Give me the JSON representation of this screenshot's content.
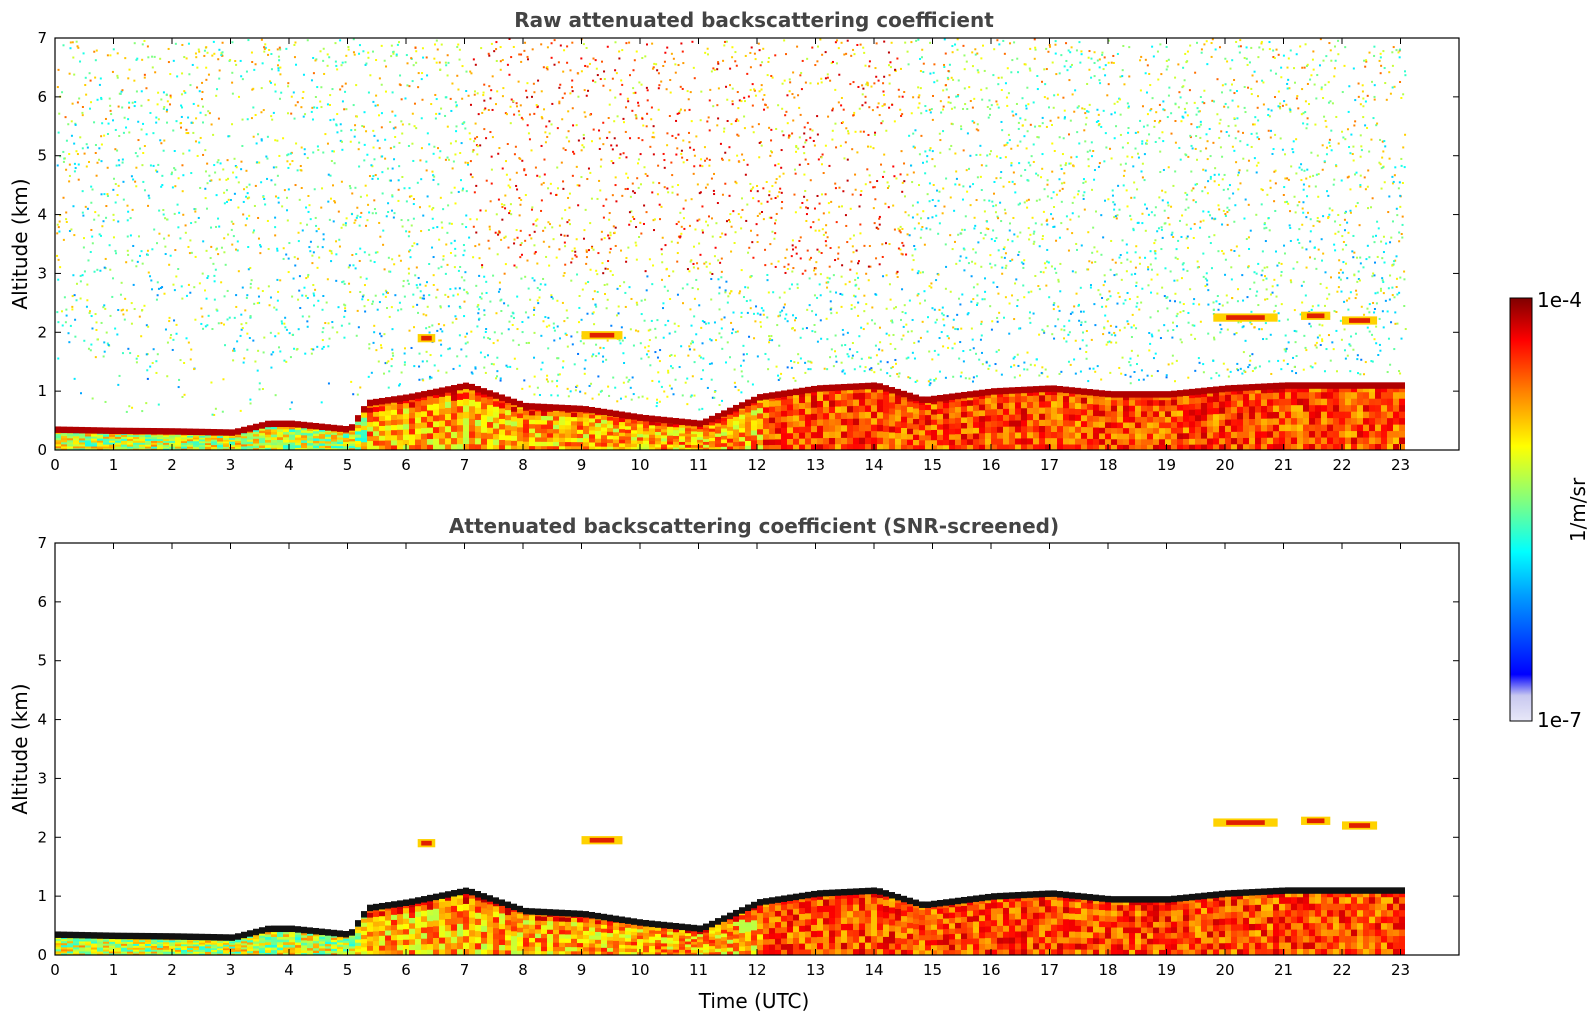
{
  "chart_data": [
    {
      "type": "heatmap",
      "title": "Raw attenuated backscattering coefficient",
      "xlabel": "",
      "ylabel": "Altitude (km)",
      "xlim": [
        0,
        24
      ],
      "ylim": [
        0,
        7
      ],
      "xticks": [
        "0",
        "1",
        "2",
        "3",
        "4",
        "5",
        "6",
        "7",
        "8",
        "9",
        "10",
        "11",
        "12",
        "13",
        "14",
        "15",
        "16",
        "17",
        "18",
        "19",
        "20",
        "21",
        "22",
        "23"
      ],
      "yticks": [
        "0",
        "1",
        "2",
        "3",
        "4",
        "5",
        "6",
        "7"
      ],
      "data_end_time": 23,
      "screened": false,
      "features": [
        {
          "kind": "boundary_layer_top",
          "x": [
            0,
            1,
            2,
            3,
            3.6,
            4,
            5,
            5.3,
            6,
            6.5,
            7,
            8,
            9,
            10,
            11,
            12,
            13,
            14,
            14.8,
            16,
            17,
            18,
            19,
            20,
            21,
            22,
            23
          ],
          "y": [
            0.35,
            0.33,
            0.32,
            0.3,
            0.45,
            0.45,
            0.35,
            0.8,
            0.9,
            1.0,
            1.1,
            0.75,
            0.7,
            0.55,
            0.45,
            0.9,
            1.05,
            1.1,
            0.85,
            1.0,
            1.05,
            0.95,
            0.95,
            1.05,
            1.1,
            1.1,
            1.1
          ]
        },
        {
          "kind": "elevated_layer",
          "x_range": [
            6.2,
            6.5
          ],
          "altitude_km": 1.9
        },
        {
          "kind": "elevated_layer",
          "x_range": [
            9.0,
            9.7
          ],
          "altitude_km": 1.95
        },
        {
          "kind": "elevated_layer",
          "x_range": [
            19.8,
            20.9
          ],
          "altitude_km": 2.25
        },
        {
          "kind": "elevated_layer",
          "x_range": [
            21.3,
            21.8
          ],
          "altitude_km": 2.28
        },
        {
          "kind": "elevated_layer",
          "x_range": [
            22.0,
            22.6
          ],
          "altitude_km": 2.2
        }
      ]
    },
    {
      "type": "heatmap",
      "title": "Attenuated backscattering coefficient (SNR-screened)",
      "xlabel": "Time (UTC)",
      "ylabel": "Altitude (km)",
      "xlim": [
        0,
        24
      ],
      "ylim": [
        0,
        7
      ],
      "xticks": [
        "0",
        "1",
        "2",
        "3",
        "4",
        "5",
        "6",
        "7",
        "8",
        "9",
        "10",
        "11",
        "12",
        "13",
        "14",
        "15",
        "16",
        "17",
        "18",
        "19",
        "20",
        "21",
        "22",
        "23"
      ],
      "yticks": [
        "0",
        "1",
        "2",
        "3",
        "4",
        "5",
        "6",
        "7"
      ],
      "data_end_time": 23,
      "screened": true,
      "features": [
        {
          "kind": "boundary_layer_top",
          "x": [
            0,
            1,
            2,
            3,
            3.6,
            4,
            5,
            5.3,
            6,
            6.5,
            7,
            8,
            9,
            10,
            11,
            12,
            13,
            14,
            14.8,
            16,
            17,
            18,
            19,
            20,
            21,
            22,
            23
          ],
          "y": [
            0.35,
            0.33,
            0.32,
            0.3,
            0.45,
            0.45,
            0.35,
            0.8,
            0.9,
            1.0,
            1.1,
            0.75,
            0.7,
            0.55,
            0.45,
            0.9,
            1.05,
            1.1,
            0.85,
            1.0,
            1.05,
            0.95,
            0.95,
            1.05,
            1.1,
            1.1,
            1.1
          ]
        },
        {
          "kind": "elevated_layer",
          "x_range": [
            6.2,
            6.5
          ],
          "altitude_km": 1.9
        },
        {
          "kind": "elevated_layer",
          "x_range": [
            9.0,
            9.7
          ],
          "altitude_km": 1.95
        },
        {
          "kind": "elevated_layer",
          "x_range": [
            19.8,
            20.9
          ],
          "altitude_km": 2.25
        },
        {
          "kind": "elevated_layer",
          "x_range": [
            21.3,
            21.8
          ],
          "altitude_km": 2.28
        },
        {
          "kind": "elevated_layer",
          "x_range": [
            22.0,
            22.6
          ],
          "altitude_km": 2.2
        }
      ]
    }
  ],
  "colorbar": {
    "label": "1/m/sr",
    "max_label": "1e-4",
    "min_label": "1e-7",
    "scale": "log",
    "colormap": "jet",
    "colors": [
      "#e8e8f8",
      "#0000ff",
      "#00a0ff",
      "#00ffff",
      "#80ff80",
      "#ffff00",
      "#ff8000",
      "#ff0000",
      "#800000"
    ]
  }
}
